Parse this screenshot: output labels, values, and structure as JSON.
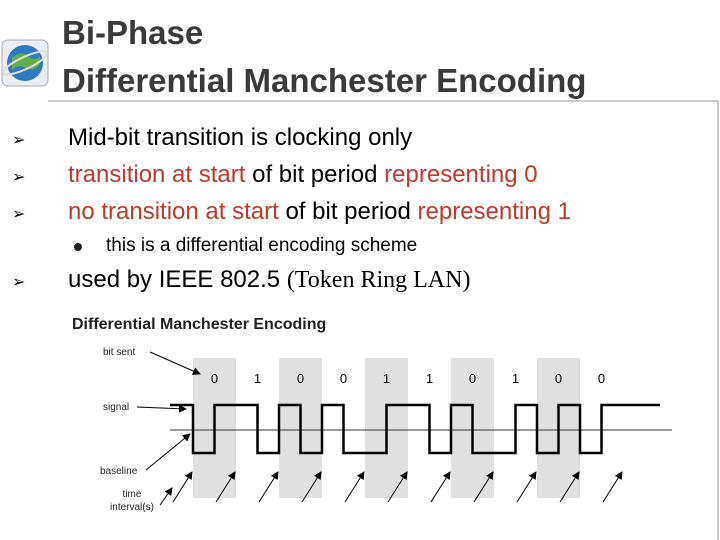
{
  "header": {
    "title_lines": [
      "Bi-Phase",
      "Differential Manchester Encoding"
    ]
  },
  "bullets": [
    {
      "level": 1,
      "parts": [
        {
          "text": "Mid-bit transition is clocking only",
          "color": "#000000"
        }
      ]
    },
    {
      "level": 1,
      "parts": [
        {
          "text": "transition at start",
          "color": "#c0392b"
        },
        {
          "text": " of bit period ",
          "color": "#000000"
        },
        {
          "text": "representing 0",
          "color": "#c0392b"
        }
      ]
    },
    {
      "level": 1,
      "parts": [
        {
          "text": "no transition at start",
          "color": "#c0392b"
        },
        {
          "text": " of bit period ",
          "color": "#000000"
        },
        {
          "text": "representing 1",
          "color": "#c0392b"
        }
      ]
    },
    {
      "level": 2,
      "parts": [
        {
          "text": "this is a differential encoding scheme",
          "color": "#000000"
        }
      ]
    },
    {
      "level": 1,
      "parts": [
        {
          "text": "used by IEEE 802.5 ",
          "color": "#000000"
        },
        {
          "text": "(Token Ring LAN)",
          "color": "#000000",
          "font": "serif"
        }
      ]
    }
  ],
  "diagram": {
    "title": "Differential Manchester Encoding",
    "labels": {
      "bit_sent": "bit sent",
      "signal": "signal",
      "baseline": "baseline",
      "time": "time",
      "interval": "interval(s)"
    },
    "bits": [
      0,
      1,
      0,
      0,
      1,
      1,
      0,
      1,
      0,
      0
    ]
  }
}
